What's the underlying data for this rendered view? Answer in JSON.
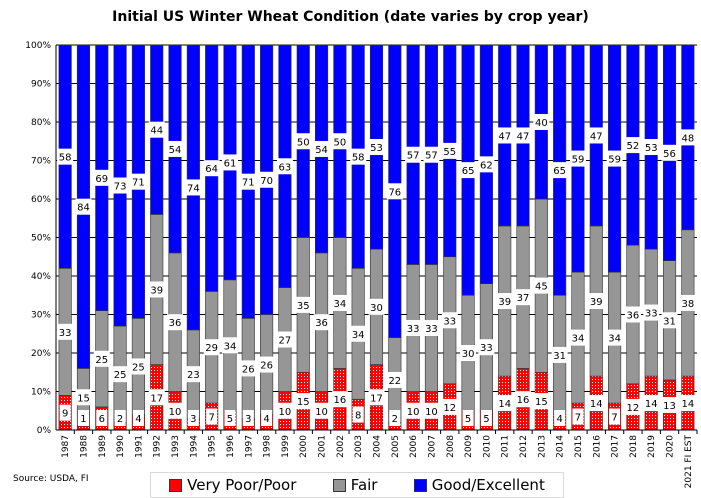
{
  "chart_data": {
    "type": "bar",
    "stacked": true,
    "title": "Initial US Winter Wheat Condition (date varies by crop year)",
    "source": "Source:  USDA, FI",
    "categories": [
      "1987",
      "1988",
      "1989",
      "1990",
      "1991",
      "1992",
      "1993",
      "1994",
      "1995",
      "1996",
      "1997",
      "1998",
      "1999",
      "2000",
      "2001",
      "2002",
      "2003",
      "2004",
      "2005",
      "2006",
      "2007",
      "2008",
      "2009",
      "2010",
      "2011",
      "2012",
      "2013",
      "2014",
      "2015",
      "2016",
      "2017",
      "2018",
      "2019",
      "2020",
      "2021 FI EST"
    ],
    "series": [
      {
        "name": "Very Poor/Poor",
        "color": "#ff0000",
        "values": [
          9,
          1,
          6,
          2,
          4,
          17,
          10,
          3,
          7,
          5,
          3,
          4,
          10,
          15,
          10,
          16,
          8,
          17,
          2,
          10,
          10,
          12,
          5,
          5,
          14,
          16,
          15,
          4,
          7,
          14,
          7,
          12,
          14,
          13,
          14
        ]
      },
      {
        "name": "Fair",
        "color": "#969696",
        "values": [
          33,
          15,
          25,
          25,
          25,
          39,
          36,
          23,
          29,
          34,
          26,
          26,
          27,
          35,
          36,
          34,
          34,
          30,
          22,
          33,
          33,
          33,
          30,
          33,
          39,
          37,
          45,
          31,
          34,
          39,
          34,
          36,
          33,
          31,
          38
        ]
      },
      {
        "name": "Good/Excellent",
        "color": "#0000ff",
        "values": [
          58,
          84,
          69,
          73,
          71,
          44,
          54,
          74,
          64,
          61,
          71,
          70,
          63,
          50,
          54,
          50,
          58,
          53,
          76,
          57,
          57,
          55,
          65,
          62,
          47,
          47,
          40,
          65,
          59,
          47,
          59,
          52,
          53,
          56,
          48
        ]
      }
    ],
    "ylim": [
      0,
      100
    ],
    "yticks": [
      "0%",
      "10%",
      "20%",
      "30%",
      "40%",
      "50%",
      "60%",
      "70%",
      "80%",
      "90%",
      "100%"
    ],
    "grid": true,
    "legend": "bottom"
  }
}
